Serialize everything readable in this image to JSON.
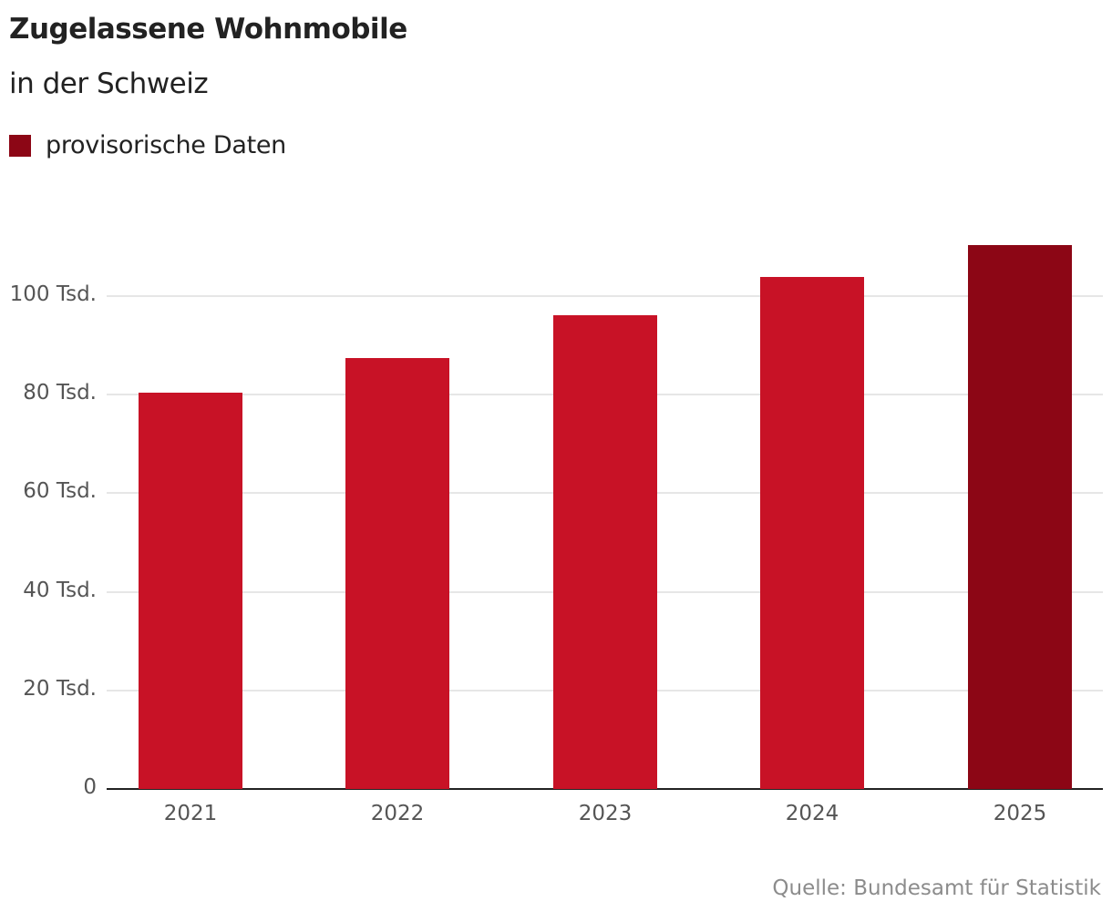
{
  "header": {
    "title": "Zugelassene Wohnmobile",
    "subtitle": "in der Schweiz"
  },
  "legend": {
    "items": [
      {
        "label": "provisorische Daten",
        "color": "#8c0615"
      }
    ]
  },
  "colors": {
    "bar_default": "#c81226",
    "bar_provisional": "#8c0615",
    "gridline": "#e6e6e6",
    "axis": "#222222"
  },
  "footer": {
    "source": "Quelle: Bundesamt für Statistik"
  },
  "chart_data": {
    "type": "bar",
    "title": "Zugelassene Wohnmobile",
    "subtitle": "in der Schweiz",
    "xlabel": "",
    "ylabel": "",
    "categories": [
      "2021",
      "2022",
      "2023",
      "2024",
      "2025"
    ],
    "values": [
      80400,
      87400,
      96100,
      103900,
      110400
    ],
    "provisional": [
      false,
      false,
      false,
      false,
      true
    ],
    "yticks": [
      0,
      20000,
      40000,
      60000,
      80000,
      100000
    ],
    "ytick_labels": [
      "0",
      "20 Tsd.",
      "40 Tsd.",
      "60 Tsd.",
      "80 Tsd.",
      "100 Tsd."
    ],
    "ylim": [
      0,
      110400
    ],
    "grid": true,
    "legend": {
      "position": "top-left",
      "entries": [
        "provisorische Daten"
      ]
    },
    "source": "Quelle: Bundesamt für Statistik"
  }
}
